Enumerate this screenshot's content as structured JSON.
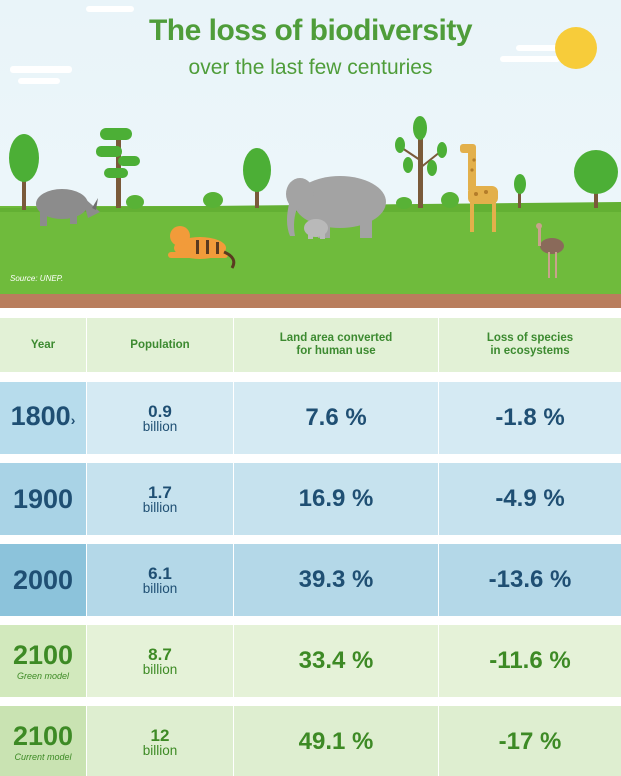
{
  "header": {
    "title": "The loss of biodiversity",
    "subtitle": "over the last few centuries",
    "source": "Source: UNEP."
  },
  "table": {
    "columns": [
      "Year",
      "Population",
      "Land area converted for human use",
      "Loss of species in ecosystems"
    ],
    "col_lines": [
      [
        "Land area converted",
        "for human use"
      ],
      [
        "Loss of species",
        "in ecosystems"
      ]
    ],
    "rows": [
      {
        "year": "1800",
        "marker": "›",
        "model": "",
        "population": "0.9",
        "population_unit": "billion",
        "land": "7.6 %",
        "loss": "-1.8 %"
      },
      {
        "year": "1900",
        "marker": "",
        "model": "",
        "population": "1.7",
        "population_unit": "billion",
        "land": "16.9 %",
        "loss": "-4.9 %"
      },
      {
        "year": "2000",
        "marker": "",
        "model": "",
        "population": "6.1",
        "population_unit": "billion",
        "land": "39.3 %",
        "loss": "-13.6 %"
      },
      {
        "year": "2100",
        "marker": "",
        "model": "Green model",
        "population": "8.7",
        "population_unit": "billion",
        "land": "33.4 %",
        "loss": "-11.6 %"
      },
      {
        "year": "2100",
        "marker": "",
        "model": "Current model",
        "population": "12",
        "population_unit": "billion",
        "land": "49.1 %",
        "loss": "-17 %"
      }
    ]
  },
  "colors": {
    "title_green": "#4f9d3a",
    "row_1800_year": "#b7dcec",
    "row_1800": "#d5eaf3",
    "row_1900_year": "#a9d3e6",
    "row_1900": "#c6e2ee",
    "row_2000_year": "#8cc3db",
    "row_2000": "#b4d8e8",
    "row_green_year": "#d2e9bd",
    "row_green": "#e5f2d8",
    "row_current_year": "#c9e3b2",
    "row_current": "#deeed0"
  },
  "icons": [
    "sun-icon",
    "cloud-icon",
    "tree-icon",
    "rhino-icon",
    "tiger-icon",
    "elephant-icon",
    "giraffe-icon",
    "ostrich-icon"
  ]
}
